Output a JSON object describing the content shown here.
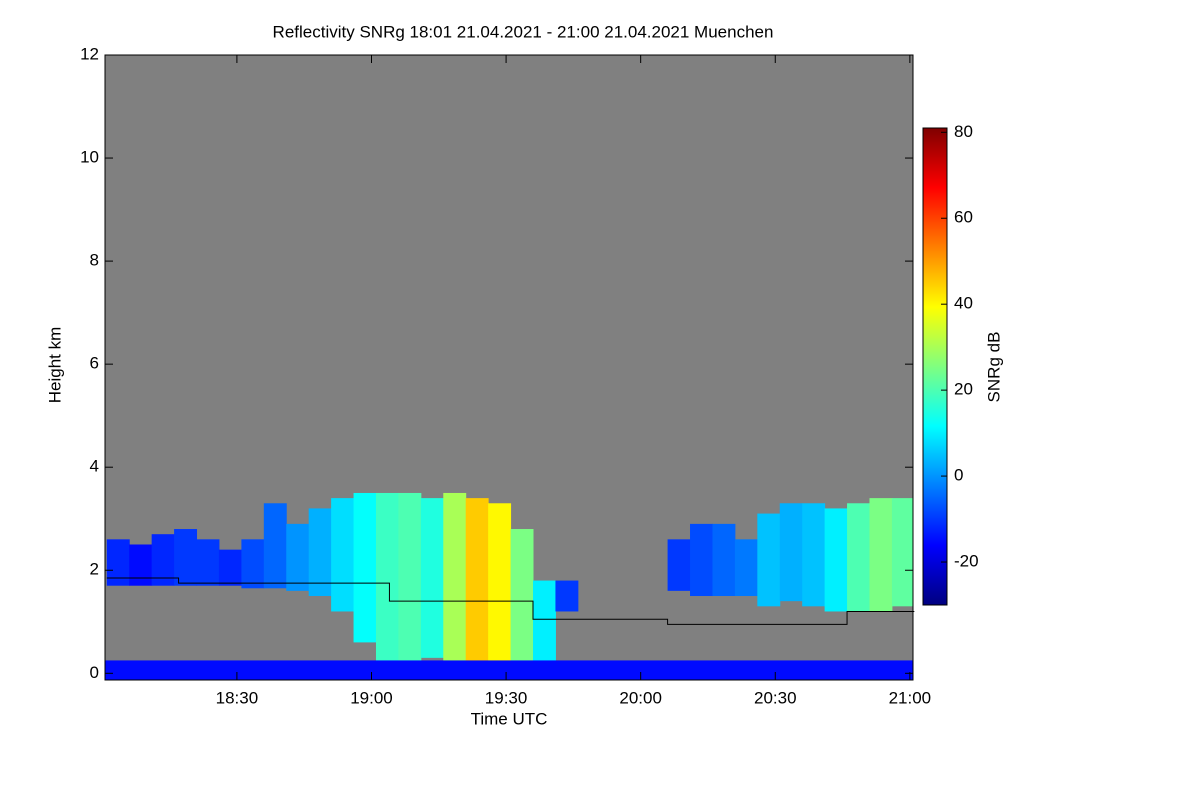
{
  "chart_data": {
    "type": "heatmap",
    "title": "Reflectivity SNRg   18:01 21.04.2021 - 21:00 21.04.2021 Muenchen",
    "xlabel": "Time UTC",
    "ylabel": "Height km",
    "colorbar_label": "SNRg dB",
    "colormap": "jet",
    "background": "#808080",
    "xlim": [
      1080.6,
      1260.7
    ],
    "xticks": [
      {
        "value": 1110,
        "label": "18:30"
      },
      {
        "value": 1140,
        "label": "19:00"
      },
      {
        "value": 1170,
        "label": "19:30"
      },
      {
        "value": 1200,
        "label": "20:00"
      },
      {
        "value": 1230,
        "label": "20:30"
      },
      {
        "value": 1260,
        "label": "21:00"
      }
    ],
    "ylim": [
      -0.13,
      12
    ],
    "yticks": [
      0,
      2,
      4,
      6,
      8,
      10,
      12
    ],
    "clim": [
      -30,
      81
    ],
    "cticks": [
      -20,
      0,
      20,
      40,
      60,
      80
    ],
    "echoes": {
      "x": [
        1081,
        1086,
        1091,
        1096,
        1101,
        1106,
        1111,
        1116,
        1121,
        1126,
        1131,
        1136,
        1141,
        1146,
        1151,
        1156,
        1161,
        1166,
        1171,
        1176,
        1181,
        1186,
        1191,
        1196,
        1201,
        1206,
        1211,
        1216,
        1221,
        1226,
        1231,
        1236,
        1241,
        1246,
        1251,
        1256
      ],
      "base": [
        1.7,
        1.7,
        1.7,
        1.7,
        1.7,
        1.7,
        1.65,
        1.65,
        1.6,
        1.5,
        1.2,
        0.6,
        0,
        0,
        0.3,
        0,
        0,
        0,
        0,
        0,
        1.2,
        null,
        null,
        null,
        null,
        1.6,
        1.5,
        1.5,
        1.5,
        1.3,
        1.4,
        1.3,
        1.2,
        1.2,
        1.2,
        1.3
      ],
      "top": [
        2.6,
        2.5,
        2.7,
        2.8,
        2.6,
        2.4,
        2.6,
        3.3,
        2.9,
        3.2,
        3.4,
        3.5,
        3.5,
        3.5,
        3.4,
        3.5,
        3.4,
        3.3,
        2.8,
        1.8,
        1.8,
        null,
        null,
        null,
        null,
        2.6,
        2.9,
        2.9,
        2.6,
        3.1,
        3.3,
        3.3,
        3.2,
        3.3,
        3.4,
        3.4
      ],
      "snr": [
        -12,
        -15,
        -12,
        -10,
        -10,
        -12,
        -8,
        -5,
        0,
        3,
        8,
        12,
        18,
        20,
        15,
        30,
        45,
        40,
        25,
        10,
        -10,
        null,
        null,
        null,
        null,
        -10,
        -8,
        -5,
        -3,
        5,
        3,
        5,
        10,
        20,
        25,
        22
      ]
    },
    "surface_echo": {
      "top": 0.25,
      "snr": -15
    },
    "line": {
      "color": "#000000",
      "x": [
        1081,
        1097,
        1097,
        1144,
        1144,
        1176,
        1176,
        1206,
        1206,
        1246,
        1246,
        1261
      ],
      "y": [
        1.85,
        1.85,
        1.75,
        1.75,
        1.4,
        1.4,
        1.05,
        1.05,
        0.95,
        0.95,
        1.2,
        1.2
      ]
    }
  }
}
